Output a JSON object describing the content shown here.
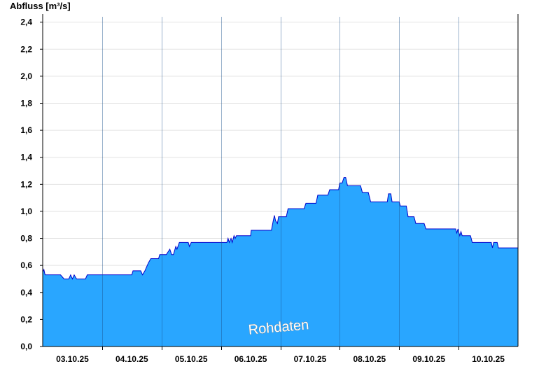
{
  "chart_data": {
    "type": "area",
    "ylabel": "Abfluss [m³/s]",
    "ylim": [
      0,
      2.45
    ],
    "y_ticks": [
      "0,0",
      "0,2",
      "0,4",
      "0,6",
      "0,8",
      "1,0",
      "1,2",
      "1,4",
      "1,6",
      "1,8",
      "2,0",
      "2,2",
      "2,4"
    ],
    "x_range": [
      2.0,
      10.0
    ],
    "x_ticks": [
      {
        "x": 2.5,
        "label": "03.10.25"
      },
      {
        "x": 3.5,
        "label": "04.10.25"
      },
      {
        "x": 4.5,
        "label": "05.10.25"
      },
      {
        "x": 5.5,
        "label": "06.10.25"
      },
      {
        "x": 6.5,
        "label": "07.10.25"
      },
      {
        "x": 7.5,
        "label": "08.10.25"
      },
      {
        "x": 8.5,
        "label": "09.10.25"
      },
      {
        "x": 9.5,
        "label": "10.10.25"
      }
    ],
    "day_boundaries": [
      3,
      4,
      5,
      6,
      7,
      8,
      9
    ],
    "grid": true,
    "fill_color": "#29a6ff",
    "line_color": "#0000cc",
    "annotation": "Rohdaten",
    "series": [
      {
        "values": [
          [
            2.0,
            0.55
          ],
          [
            2.02,
            0.57
          ],
          [
            2.04,
            0.53
          ],
          [
            2.1,
            0.53
          ],
          [
            2.2,
            0.53
          ],
          [
            2.3,
            0.53
          ],
          [
            2.36,
            0.5
          ],
          [
            2.44,
            0.5
          ],
          [
            2.47,
            0.53
          ],
          [
            2.5,
            0.5
          ],
          [
            2.53,
            0.53
          ],
          [
            2.57,
            0.5
          ],
          [
            2.72,
            0.5
          ],
          [
            2.75,
            0.53
          ],
          [
            2.9,
            0.53
          ],
          [
            3.0,
            0.53
          ],
          [
            3.2,
            0.53
          ],
          [
            3.4,
            0.53
          ],
          [
            3.5,
            0.53
          ],
          [
            3.52,
            0.56
          ],
          [
            3.65,
            0.56
          ],
          [
            3.68,
            0.53
          ],
          [
            3.72,
            0.56
          ],
          [
            3.75,
            0.59
          ],
          [
            3.78,
            0.62
          ],
          [
            3.82,
            0.65
          ],
          [
            3.95,
            0.65
          ],
          [
            3.97,
            0.68
          ],
          [
            4.08,
            0.68
          ],
          [
            4.14,
            0.72
          ],
          [
            4.17,
            0.68
          ],
          [
            4.2,
            0.68
          ],
          [
            4.24,
            0.74
          ],
          [
            4.26,
            0.72
          ],
          [
            4.3,
            0.77
          ],
          [
            4.45,
            0.77
          ],
          [
            4.47,
            0.74
          ],
          [
            4.5,
            0.77
          ],
          [
            5.0,
            0.77
          ],
          [
            5.1,
            0.77
          ],
          [
            5.12,
            0.8
          ],
          [
            5.14,
            0.77
          ],
          [
            5.17,
            0.8
          ],
          [
            5.19,
            0.77
          ],
          [
            5.22,
            0.82
          ],
          [
            5.24,
            0.8
          ],
          [
            5.26,
            0.82
          ],
          [
            5.5,
            0.82
          ],
          [
            5.51,
            0.86
          ],
          [
            5.52,
            0.86
          ],
          [
            5.85,
            0.86
          ],
          [
            5.88,
            0.93
          ],
          [
            5.9,
            0.97
          ],
          [
            5.92,
            0.93
          ],
          [
            5.95,
            0.91
          ],
          [
            5.97,
            0.96
          ],
          [
            6.0,
            0.96
          ],
          [
            6.1,
            0.96
          ],
          [
            6.13,
            1.02
          ],
          [
            6.4,
            1.02
          ],
          [
            6.43,
            1.06
          ],
          [
            6.6,
            1.06
          ],
          [
            6.63,
            1.12
          ],
          [
            6.8,
            1.12
          ],
          [
            6.83,
            1.16
          ],
          [
            6.98,
            1.16
          ],
          [
            7.0,
            1.21
          ],
          [
            7.04,
            1.21
          ],
          [
            7.07,
            1.25
          ],
          [
            7.1,
            1.25
          ],
          [
            7.13,
            1.19
          ],
          [
            7.35,
            1.19
          ],
          [
            7.38,
            1.14
          ],
          [
            7.48,
            1.14
          ],
          [
            7.52,
            1.07
          ],
          [
            7.8,
            1.07
          ],
          [
            7.82,
            1.13
          ],
          [
            7.86,
            1.13
          ],
          [
            7.88,
            1.07
          ],
          [
            8.0,
            1.07
          ],
          [
            8.02,
            1.04
          ],
          [
            8.12,
            1.04
          ],
          [
            8.15,
            0.96
          ],
          [
            8.25,
            0.96
          ],
          [
            8.28,
            0.91
          ],
          [
            8.42,
            0.91
          ],
          [
            8.45,
            0.87
          ],
          [
            8.95,
            0.87
          ],
          [
            8.97,
            0.84
          ],
          [
            8.99,
            0.87
          ],
          [
            9.0,
            0.85
          ],
          [
            9.02,
            0.82
          ],
          [
            9.04,
            0.85
          ],
          [
            9.06,
            0.82
          ],
          [
            9.08,
            0.82
          ],
          [
            9.1,
            0.82
          ],
          [
            9.2,
            0.82
          ],
          [
            9.23,
            0.77
          ],
          [
            9.55,
            0.77
          ],
          [
            9.57,
            0.73
          ],
          [
            9.59,
            0.77
          ],
          [
            9.65,
            0.77
          ],
          [
            9.67,
            0.73
          ],
          [
            10.0,
            0.73
          ]
        ]
      }
    ]
  }
}
